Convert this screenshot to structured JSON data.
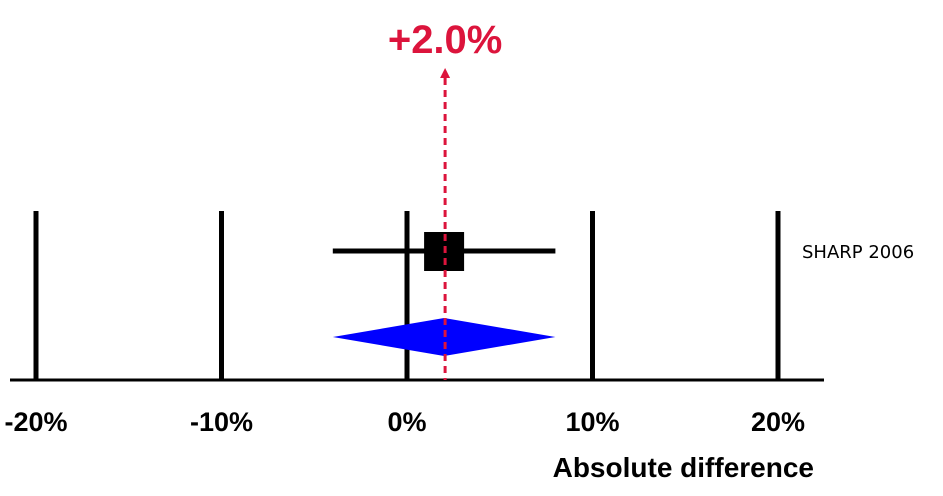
{
  "chart_data": {
    "type": "forest",
    "xlabel": "Absolute difference",
    "xlim": [
      -0.22,
      0.22
    ],
    "ticks": [
      {
        "value": -0.2,
        "label": "-20%"
      },
      {
        "value": -0.1,
        "label": "-10%"
      },
      {
        "value": 0.0,
        "label": "0%"
      },
      {
        "value": 0.1,
        "label": "10%"
      },
      {
        "value": 0.2,
        "label": "20%"
      }
    ],
    "studies": [
      {
        "name": "SHARP 2006",
        "estimate": 0.02,
        "ci_low": -0.04,
        "ci_high": 0.08
      }
    ],
    "pooled": {
      "estimate": 0.02,
      "ci_low": -0.04,
      "ci_high": 0.08
    },
    "pooled_label": "+2.0%",
    "gridlines": true,
    "colors": {
      "study_marker": "#000000",
      "pooled_diamond": "#0000ff",
      "effect_line": "#dc143c",
      "grid": "#000000"
    }
  }
}
